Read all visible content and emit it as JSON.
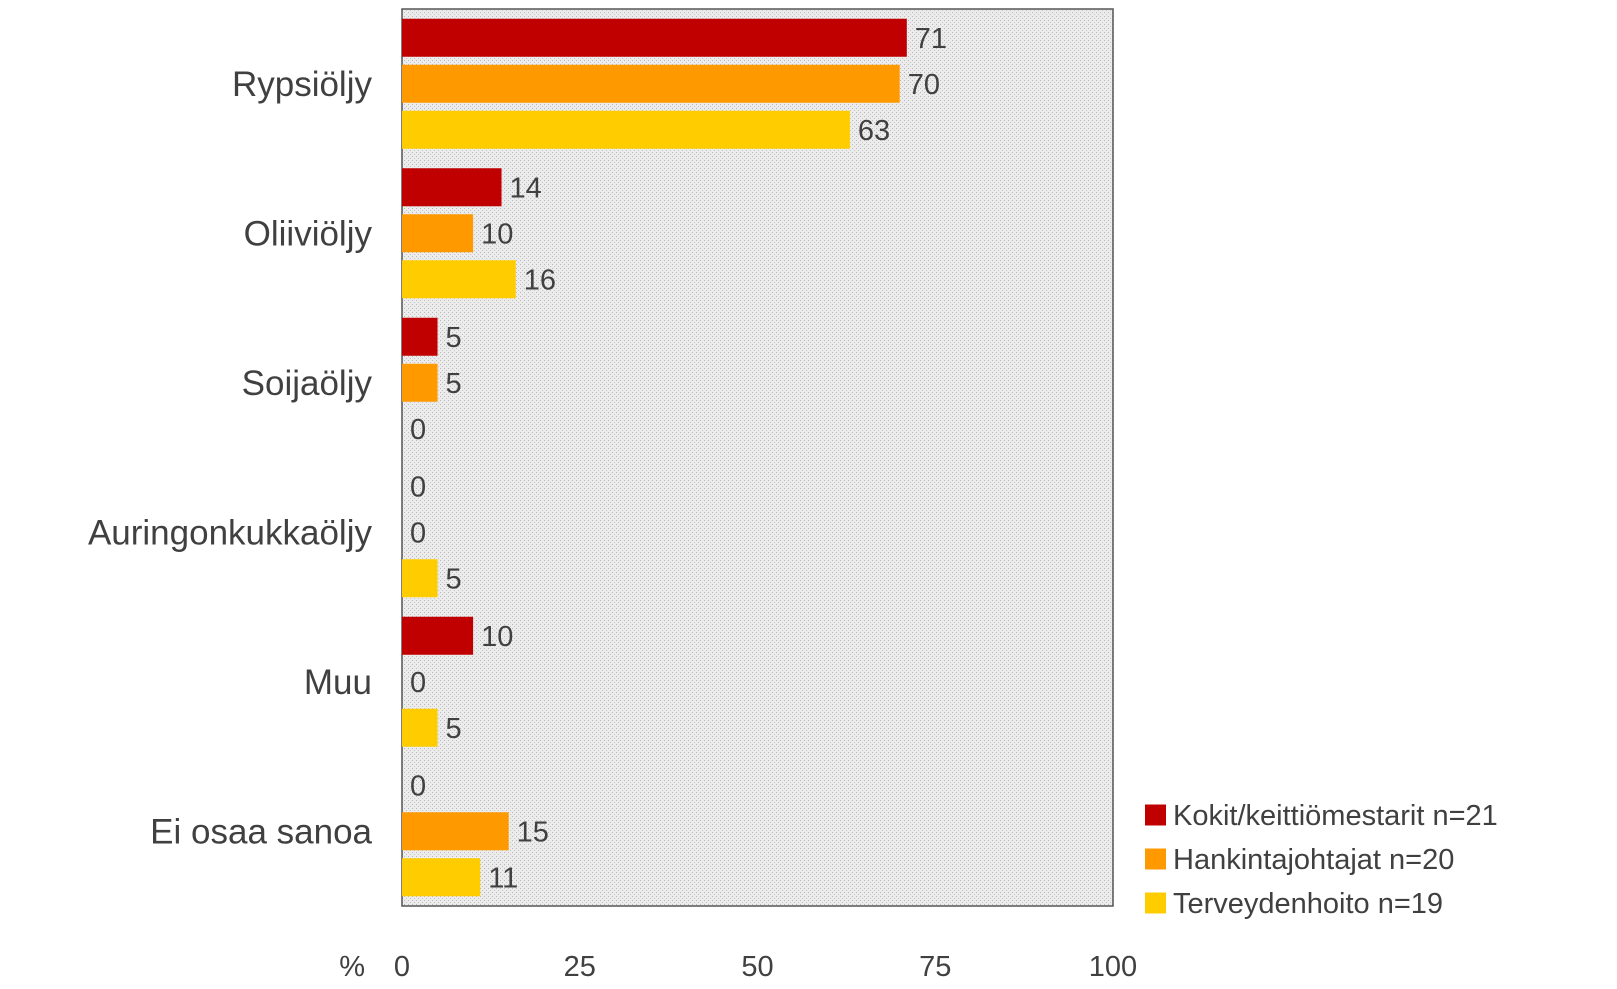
{
  "chart_data": {
    "type": "bar",
    "orientation": "horizontal",
    "categories": [
      "Rypsiöljy",
      "Oliiviöljy",
      "Soijaöljy",
      "Auringonkukkaöljy",
      "Muu",
      "Ei osaa sanoa"
    ],
    "series": [
      {
        "name": "Kokit/keittiömestarit n=21",
        "color": "#c00000",
        "values": [
          71,
          14,
          5,
          0,
          10,
          0
        ]
      },
      {
        "name": "Hankintajohtajat n=20",
        "color": "#ff9900",
        "values": [
          70,
          10,
          5,
          0,
          0,
          15
        ]
      },
      {
        "name": "Terveydenhoito n=19",
        "color": "#ffcc00",
        "values": [
          63,
          16,
          0,
          5,
          5,
          11
        ]
      }
    ],
    "xlim": [
      0,
      100
    ],
    "xticks": [
      "0",
      "25",
      "50",
      "75",
      "100"
    ],
    "xlabel": "%",
    "ylabel": "",
    "title": "",
    "plot_background": "#e8e8e8 dotted",
    "grid": false,
    "data_labels": true,
    "legend_position": "bottom-right"
  }
}
